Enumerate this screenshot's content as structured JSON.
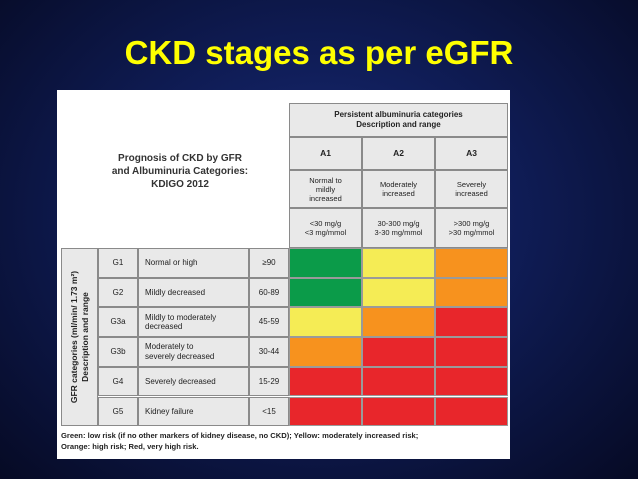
{
  "slide": {
    "title": "CKD stages as per eGFR"
  },
  "prognosis_title": [
    "Prognosis of CKD by GFR",
    "and Albuminuria Categories:",
    "KDIGO 2012"
  ],
  "albuminuria_header": {
    "line1": "Persistent albuminuria categories",
    "line2": "Description and range"
  },
  "albuminuria_categories": [
    {
      "code": "A1",
      "desc": [
        "Normal to",
        "mildly",
        "increased"
      ],
      "range": [
        "<30 mg/g",
        "<3 mg/mmol"
      ]
    },
    {
      "code": "A2",
      "desc": [
        "Moderately",
        "increased"
      ],
      "range": [
        "30-300 mg/g",
        "3-30 mg/mmol"
      ]
    },
    {
      "code": "A3",
      "desc": [
        "Severely",
        "increased"
      ],
      "range": [
        ">300 mg/g",
        ">30 mg/mmol"
      ]
    }
  ],
  "gfr_side_label": {
    "line1": "GFR categories (ml/min/ 1.73 m²)",
    "line2": "Description and range"
  },
  "gfr_rows": [
    {
      "code": "G1",
      "desc": [
        "Normal or high"
      ],
      "range": "≥90"
    },
    {
      "code": "G2",
      "desc": [
        "Mildly decreased"
      ],
      "range": "60-89"
    },
    {
      "code": "G3a",
      "desc": [
        "Mildly to moderately",
        "decreased"
      ],
      "range": "45-59"
    },
    {
      "code": "G3b",
      "desc": [
        "Moderately to",
        "severely decreased"
      ],
      "range": "30-44"
    },
    {
      "code": "G4",
      "desc": [
        "Severely decreased"
      ],
      "range": "15-29"
    },
    {
      "code": "G5",
      "desc": [
        "Kidney failure"
      ],
      "range": "<15"
    }
  ],
  "colors": {
    "green": "#0b9b49",
    "yellow": "#f5ec55",
    "orange": "#f7921e",
    "red": "#e8262b"
  },
  "risk_grid": [
    [
      "green",
      "yellow",
      "orange"
    ],
    [
      "green",
      "yellow",
      "orange"
    ],
    [
      "yellow",
      "orange",
      "red"
    ],
    [
      "orange",
      "red",
      "red"
    ],
    [
      "red",
      "red",
      "red"
    ],
    [
      "red",
      "red",
      "red"
    ]
  ],
  "footnote": [
    "Green: low risk (if no other markers of kidney disease, no CKD); Yellow: moderately increased risk;",
    "Orange: high risk; Red, very high risk."
  ]
}
